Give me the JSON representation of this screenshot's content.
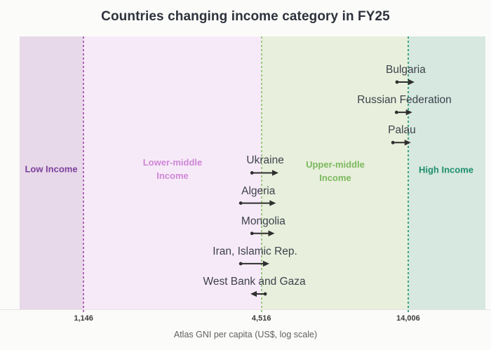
{
  "title": "Countries changing income category in FY25",
  "axis": {
    "label": "Atlas GNI per capita (US$, log scale)"
  },
  "chart_data": {
    "type": "scatter",
    "title": "Countries changing income category in FY25",
    "xlabel": "Atlas GNI per capita (US$, log scale)",
    "x_scale": "log",
    "xlim": [
      700,
      25400
    ],
    "grid": false,
    "arrow_color": "#2f2f2f",
    "thresholds": [
      {
        "value": 1146,
        "label": "1,146",
        "line_color": "#af66b8"
      },
      {
        "value": 4516,
        "label": "4,516",
        "line_color": "#9aca81"
      },
      {
        "value": 14006,
        "label": "14,006",
        "line_color": "#3da189"
      }
    ],
    "bands": [
      {
        "label": "Low Income",
        "label_lines": [
          "Low Income"
        ],
        "range": [
          700,
          1146
        ],
        "fill": "#e7d9e9",
        "text_color": "#7b3f9c"
      },
      {
        "label": "Lower-middle Income",
        "label_lines": [
          "Lower-middle",
          "Income"
        ],
        "range": [
          1146,
          4516
        ],
        "fill": "#f7eaf8",
        "text_color": "#cd87d6"
      },
      {
        "label": "Upper-middle Income",
        "label_lines": [
          "Upper-middle",
          "Income"
        ],
        "range": [
          4516,
          14006
        ],
        "fill": "#e8efdc",
        "text_color": "#7cb85e"
      },
      {
        "label": "High Income",
        "label_lines": [
          "High Income"
        ],
        "range": [
          14006,
          25400
        ],
        "fill": "#d6e8df",
        "text_color": "#1f8e6d"
      }
    ],
    "series": [
      {
        "name": "Bulgaria",
        "gni_from": 12850,
        "gni_to": 14700,
        "direction": "up",
        "crosses": 14006
      },
      {
        "name": "Russian Federation",
        "gni_from": 12800,
        "gni_to": 14450,
        "direction": "up",
        "crosses": 14006
      },
      {
        "name": "Palau",
        "gni_from": 12450,
        "gni_to": 14300,
        "direction": "up",
        "crosses": 14006
      },
      {
        "name": "Ukraine",
        "gni_from": 4200,
        "gni_to": 5150,
        "direction": "up",
        "crosses": 4516
      },
      {
        "name": "Algeria",
        "gni_from": 3850,
        "gni_to": 5050,
        "direction": "up",
        "crosses": 4516
      },
      {
        "name": "Mongolia",
        "gni_from": 4200,
        "gni_to": 5000,
        "direction": "up",
        "crosses": 4516
      },
      {
        "name": "Iran, Islamic Rep.",
        "gni_from": 3850,
        "gni_to": 4800,
        "direction": "up",
        "crosses": 4516
      },
      {
        "name": "West Bank and Gaza",
        "gni_from": 4650,
        "gni_to": 4150,
        "direction": "down",
        "crosses": 4516
      }
    ]
  }
}
